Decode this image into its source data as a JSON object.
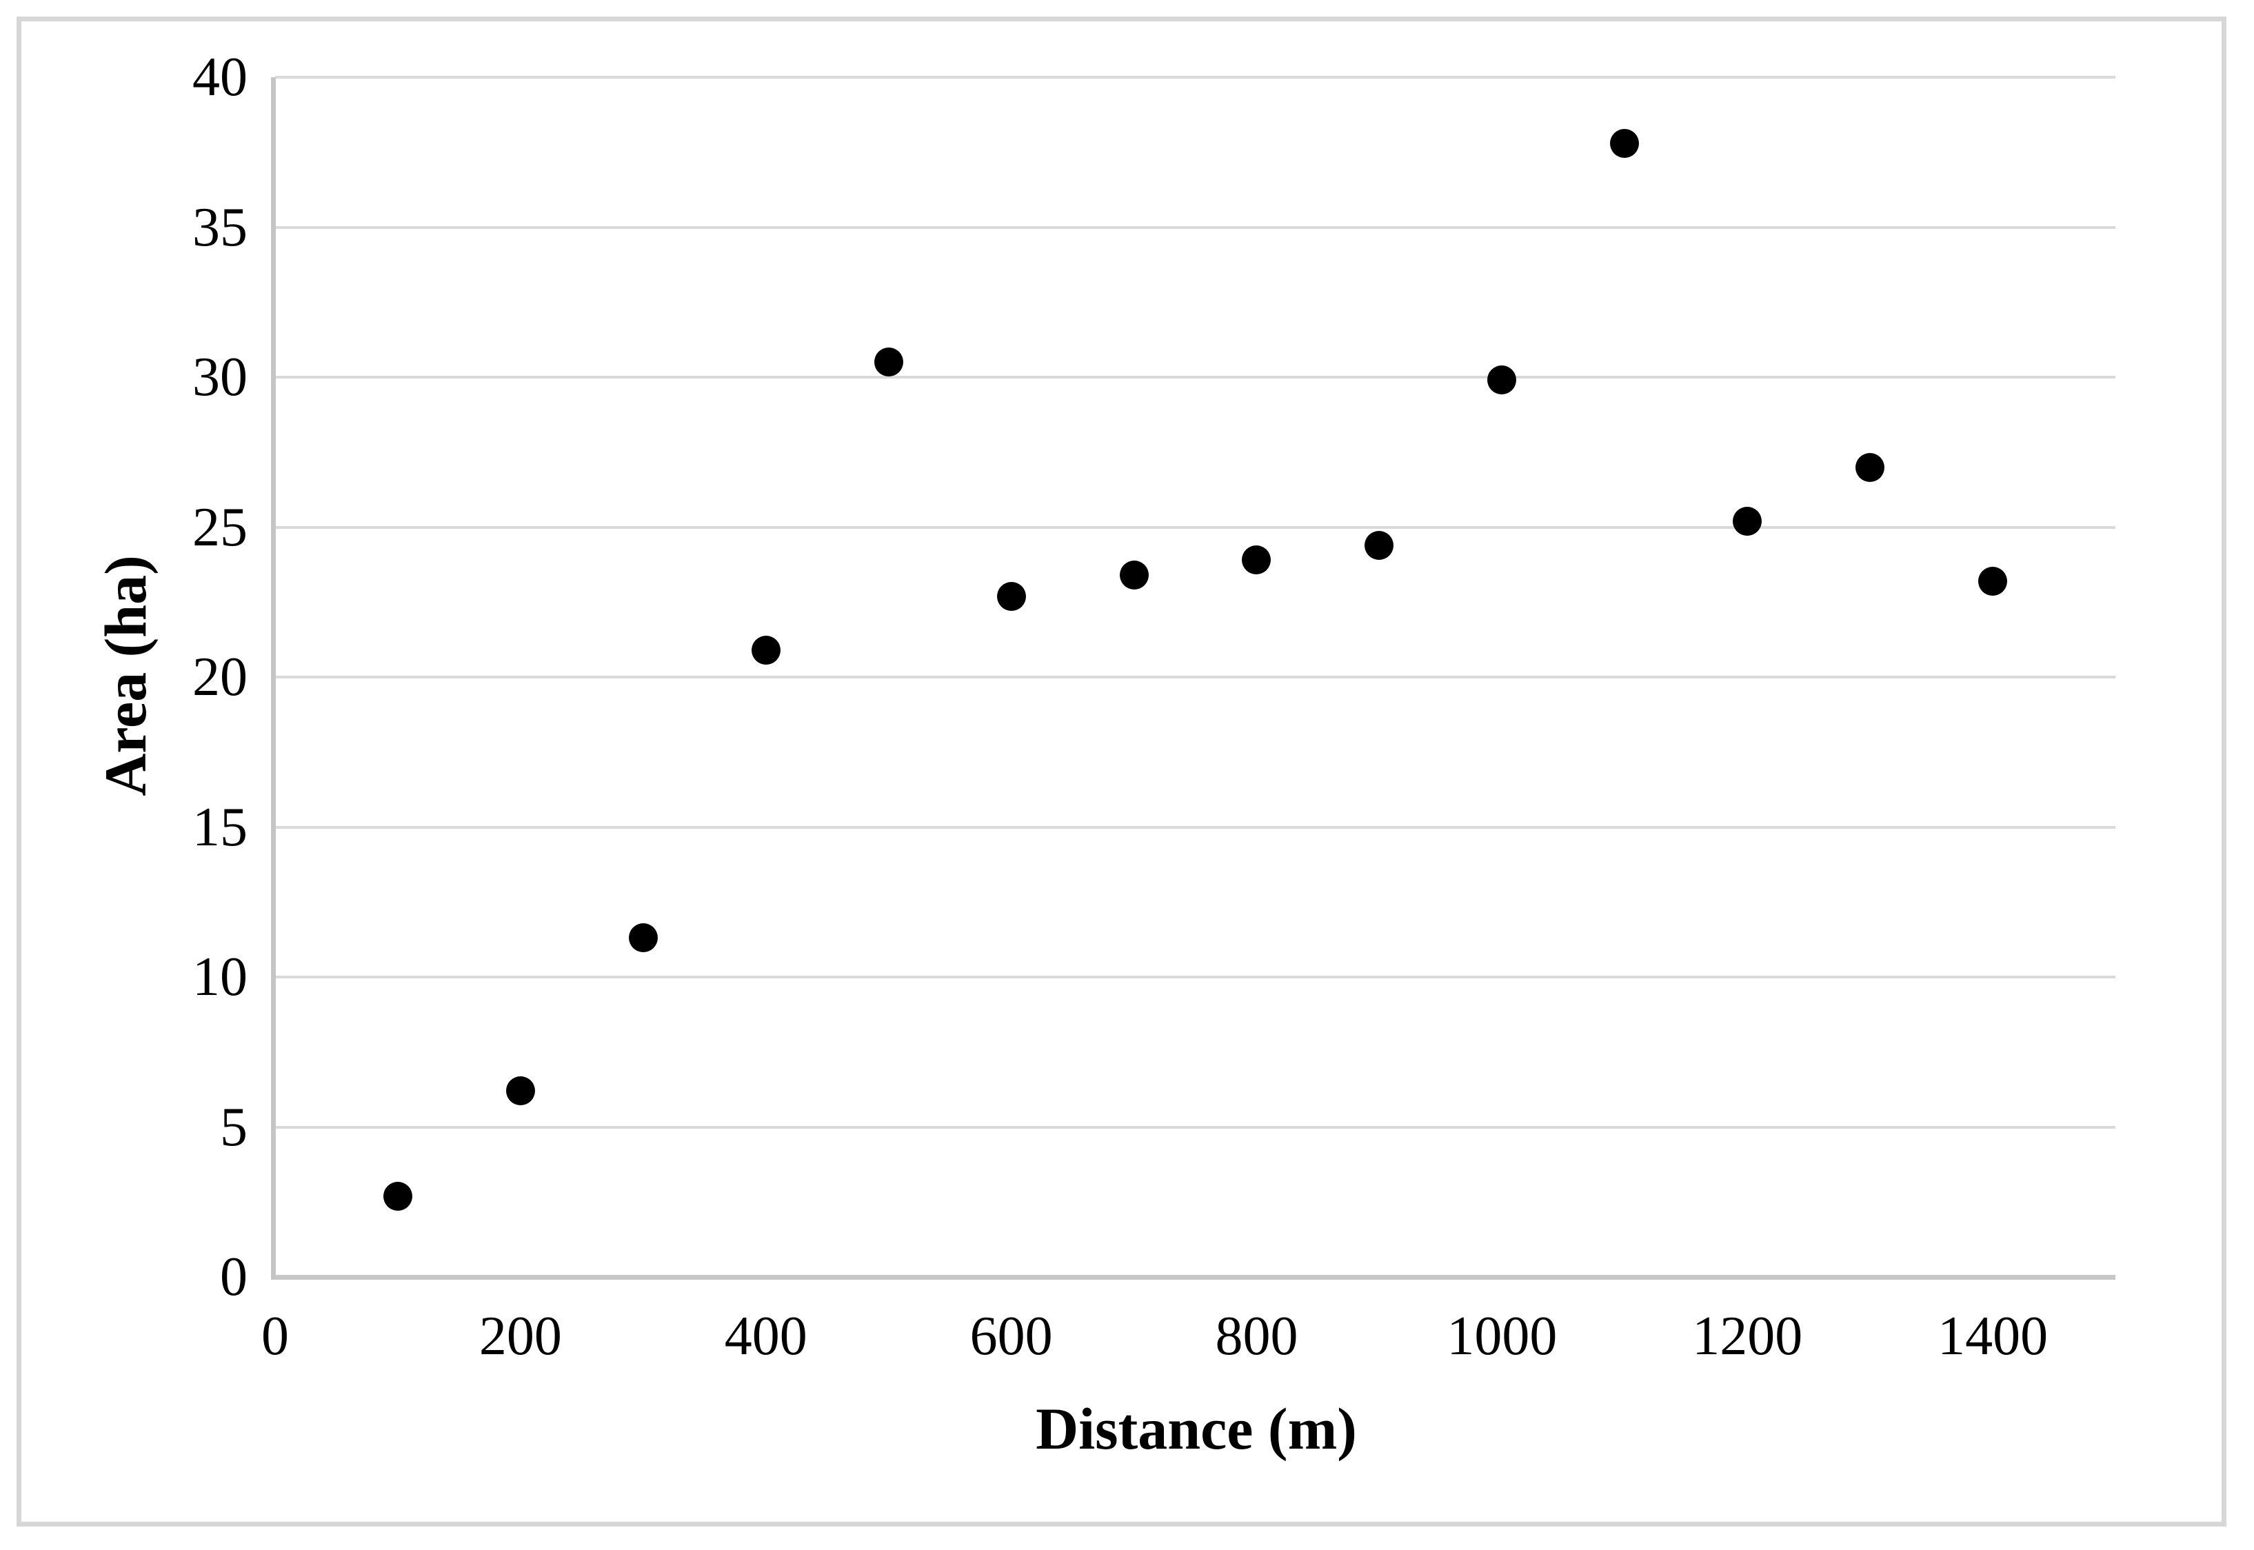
{
  "chart_data": {
    "type": "scatter",
    "title": "",
    "xlabel": "Distance (m)",
    "ylabel": "Area (ha)",
    "x": [
      100,
      200,
      300,
      400,
      500,
      600,
      700,
      800,
      900,
      1000,
      1100,
      1200,
      1300,
      1400
    ],
    "y": [
      2.7,
      6.2,
      11.3,
      20.9,
      30.5,
      22.7,
      23.4,
      23.9,
      24.4,
      29.9,
      37.8,
      25.2,
      27.0,
      23.2
    ],
    "xlim": [
      0,
      1500
    ],
    "ylim": [
      0,
      40
    ],
    "xticks": [
      0,
      200,
      400,
      600,
      800,
      1000,
      1200,
      1400
    ],
    "yticks": [
      0,
      5,
      10,
      15,
      20,
      25,
      30,
      35,
      40
    ],
    "grid": "horizontal-only",
    "legend": "none",
    "marker_color": "#000000",
    "gridline_color": "#d9d9d9",
    "axis_line_color": "#c6c6c6",
    "figure_border_color": "#d7d7d7",
    "background_color": "#ffffff"
  }
}
